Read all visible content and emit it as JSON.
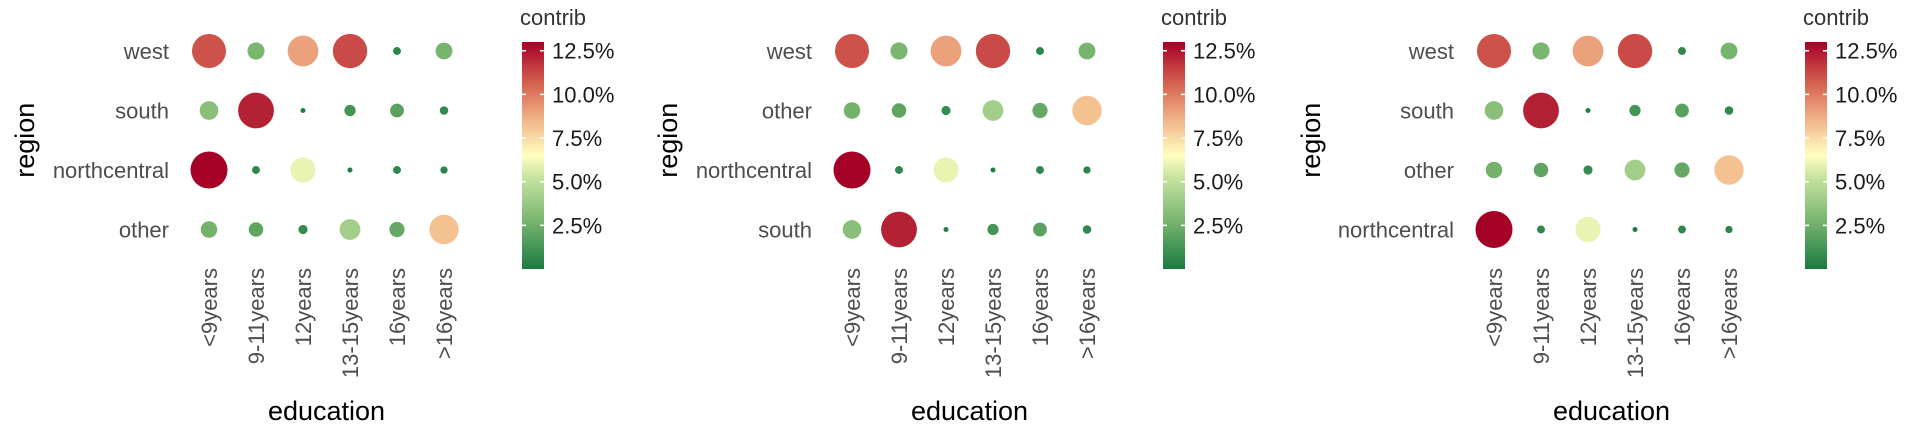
{
  "chart_data": [
    {
      "type": "scatter",
      "title": "",
      "xlabel": "education",
      "ylabel": "region",
      "categories": [
        "<9years",
        "9-11years",
        "12years",
        "13-15years",
        "16years",
        ">16years"
      ],
      "rows": [
        "west",
        "south",
        "northcentral",
        "other"
      ],
      "values": [
        [
          11.0,
          2.8,
          9.0,
          11.2,
          0.6,
          2.7
        ],
        [
          3.3,
          12.2,
          0.2,
          1.2,
          1.8,
          0.7
        ],
        [
          13.0,
          0.6,
          6.0,
          0.1,
          0.6,
          0.5
        ],
        [
          2.6,
          2.0,
          0.8,
          4.1,
          2.2,
          8.2
        ]
      ],
      "legend": {
        "title": "contrib",
        "ticks": [
          "2.5%",
          "5.0%",
          "7.5%",
          "10.0%",
          "12.5%"
        ],
        "range": [
          0,
          13
        ],
        "placement": "right"
      }
    },
    {
      "type": "scatter",
      "title": "",
      "xlabel": "education",
      "ylabel": "region",
      "categories": [
        "<9years",
        "9-11years",
        "12years",
        "13-15years",
        "16years",
        ">16years"
      ],
      "rows": [
        "west",
        "other",
        "northcentral",
        "south"
      ],
      "values": [
        [
          11.0,
          2.8,
          9.0,
          11.2,
          0.6,
          2.7
        ],
        [
          2.6,
          2.0,
          0.8,
          4.1,
          2.2,
          8.2
        ],
        [
          13.0,
          0.6,
          6.0,
          0.1,
          0.6,
          0.5
        ],
        [
          3.3,
          12.2,
          0.2,
          1.2,
          1.8,
          0.7
        ]
      ],
      "legend": {
        "title": "contrib",
        "ticks": [
          "2.5%",
          "5.0%",
          "7.5%",
          "10.0%",
          "12.5%"
        ],
        "range": [
          0,
          13
        ],
        "placement": "right"
      }
    },
    {
      "type": "scatter",
      "title": "",
      "xlabel": "education",
      "ylabel": "region",
      "categories": [
        "<9years",
        "9-11years",
        "12years",
        "13-15years",
        "16years",
        ">16years"
      ],
      "rows": [
        "west",
        "south",
        "other",
        "northcentral"
      ],
      "values": [
        [
          11.0,
          2.8,
          9.0,
          11.2,
          0.6,
          2.7
        ],
        [
          3.3,
          12.2,
          0.2,
          1.2,
          1.8,
          0.7
        ],
        [
          2.6,
          2.0,
          0.8,
          4.1,
          2.2,
          8.2
        ],
        [
          13.0,
          0.6,
          6.0,
          0.1,
          0.6,
          0.5
        ]
      ],
      "legend": {
        "title": "contrib",
        "ticks": [
          "2.5%",
          "5.0%",
          "7.5%",
          "10.0%",
          "12.5%"
        ],
        "range": [
          0,
          13
        ],
        "placement": "right"
      }
    }
  ],
  "colors": {
    "low": "#1a7a42",
    "mid": "#ffffbf",
    "high": "#a50026"
  }
}
